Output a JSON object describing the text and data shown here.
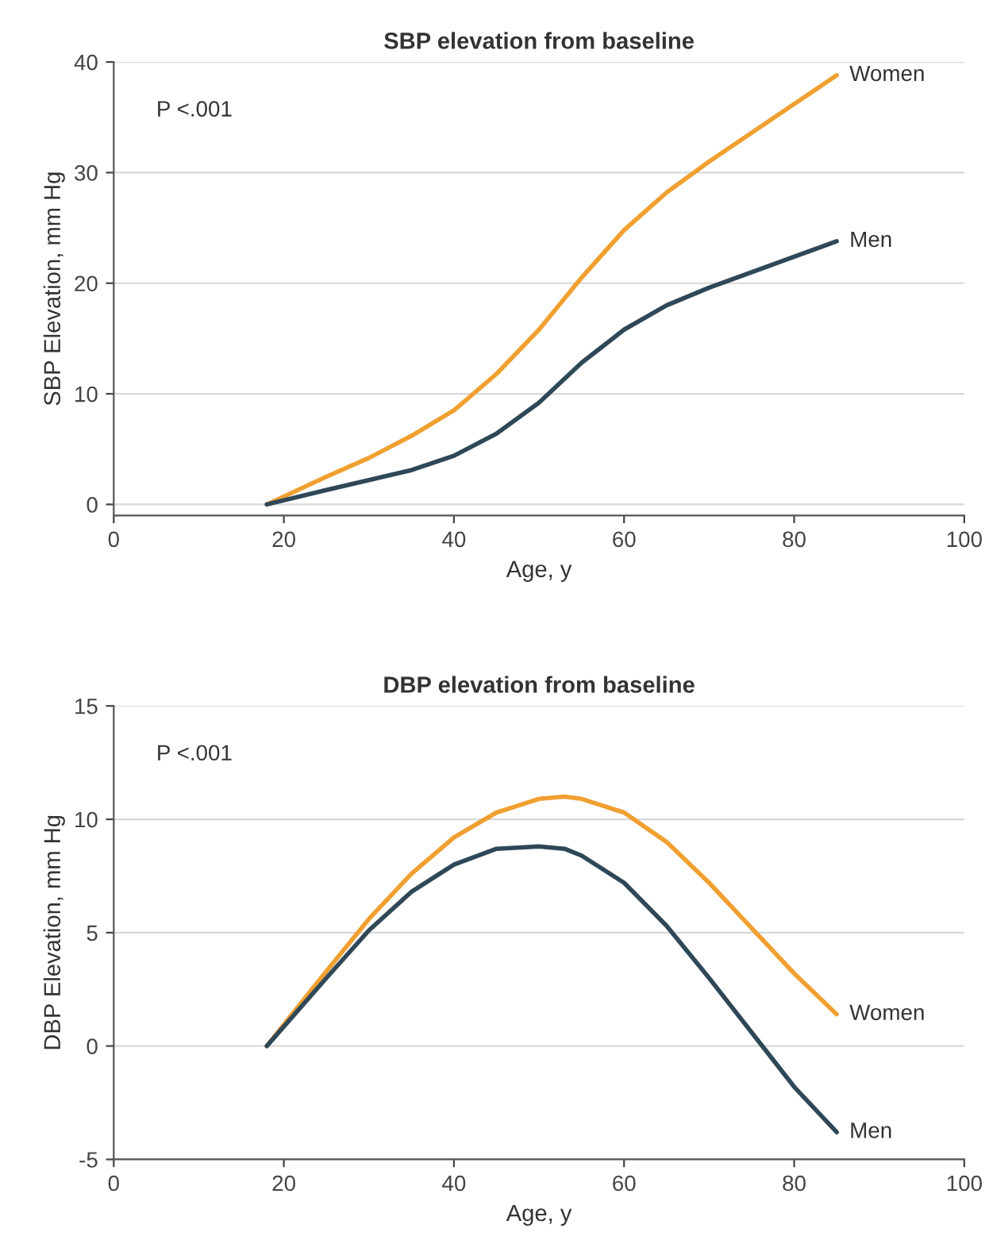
{
  "chart_data": [
    {
      "type": "line",
      "title": "SBP elevation from baseline",
      "xlabel": "Age, y",
      "ylabel": "SBP Elevation, mm Hg",
      "annotations": [
        "P <.001"
      ],
      "x": [
        18,
        25,
        30,
        35,
        40,
        45,
        50,
        55,
        60,
        65,
        70,
        75,
        80,
        85
      ],
      "series": [
        {
          "name": "Women",
          "color": "#f0a030",
          "values": [
            0,
            2.5,
            4.2,
            6.2,
            8.5,
            11.8,
            15.8,
            20.5,
            24.8,
            28.2,
            31,
            33.6,
            36.2,
            38.8
          ]
        },
        {
          "name": "Men",
          "color": "#2f4858",
          "values": [
            0,
            1.3,
            2.2,
            3.1,
            4.4,
            6.4,
            9.2,
            12.8,
            15.8,
            18,
            19.6,
            21,
            22.4,
            23.8
          ]
        }
      ],
      "xlim": [
        0,
        100
      ],
      "xticks": [
        0,
        20,
        40,
        60,
        80,
        100
      ],
      "ylim": [
        -1,
        40
      ],
      "yticks": [
        0,
        10,
        20,
        30,
        40
      ],
      "grid": "y",
      "legend": false
    },
    {
      "type": "line",
      "title": "DBP elevation from baseline",
      "xlabel": "Age, y",
      "ylabel": "DBP Elevation, mm Hg",
      "annotations": [
        "P <.001"
      ],
      "x": [
        18,
        25,
        30,
        35,
        40,
        45,
        50,
        53,
        55,
        60,
        65,
        70,
        75,
        80,
        85
      ],
      "series": [
        {
          "name": "Women",
          "color": "#f0a030",
          "values": [
            0,
            3.3,
            5.6,
            7.6,
            9.2,
            10.3,
            10.9,
            11,
            10.9,
            10.3,
            9.0,
            7.2,
            5.2,
            3.2,
            1.4
          ]
        },
        {
          "name": "Men",
          "color": "#2f4858",
          "values": [
            0,
            3.0,
            5.1,
            6.8,
            8.0,
            8.7,
            8.8,
            8.7,
            8.4,
            7.2,
            5.3,
            3.0,
            0.6,
            -1.8,
            -3.8
          ]
        }
      ],
      "xlim": [
        0,
        100
      ],
      "xticks": [
        0,
        20,
        40,
        60,
        80,
        100
      ],
      "ylim": [
        -5,
        15
      ],
      "yticks": [
        -5,
        0,
        5,
        10,
        15
      ],
      "grid": "y",
      "legend": false
    }
  ]
}
